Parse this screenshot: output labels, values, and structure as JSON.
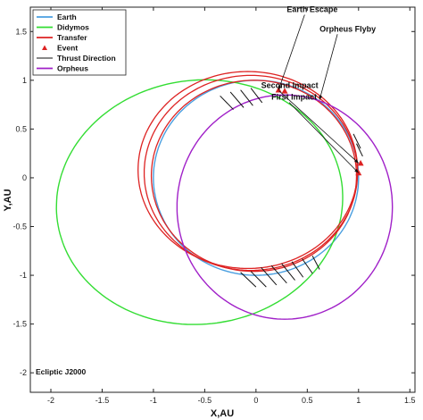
{
  "chart_data": {
    "type": "line",
    "xlabel": "X,AU",
    "ylabel": "Y,AU",
    "xlim": [
      -2.2,
      1.55
    ],
    "ylim": [
      -2.2,
      1.75
    ],
    "xticks": [
      -2,
      -1.5,
      -1,
      -0.5,
      0,
      0.5,
      1,
      1.5
    ],
    "yticks": [
      1.5,
      1,
      0.5,
      0,
      -0.5,
      -1,
      -1.5,
      -2
    ],
    "grid": false,
    "legend_position": "top-left",
    "corner_label": "Ecliptic J2000",
    "series": [
      {
        "name": "Earth",
        "kind": "ellipse",
        "color": "#4a9fe0",
        "center": [
          0,
          0
        ],
        "rx": 1.0,
        "ry": 1.0,
        "rotation_deg": 0
      },
      {
        "name": "Didymos",
        "kind": "ellipse",
        "color": "#33dd33",
        "center": [
          -0.55,
          -0.25
        ],
        "rx": 1.4,
        "ry": 1.25,
        "rotation_deg": 10
      },
      {
        "name": "Transfer",
        "kind": "spiral",
        "color": "#dd2222",
        "loops": [
          {
            "center": [
              -0.02,
              0.02
            ],
            "rx": 1.0,
            "ry": 0.98
          },
          {
            "center": [
              -0.05,
              0.05
            ],
            "rx": 1.04,
            "ry": 1.0
          },
          {
            "center": [
              -0.08,
              0.08
            ],
            "rx": 1.07,
            "ry": 1.01
          }
        ]
      },
      {
        "name": "Event",
        "kind": "markers",
        "color": "#dd2222",
        "points": [
          [
            0.28,
            0.89
          ],
          [
            0.22,
            0.9
          ],
          [
            1.02,
            0.15
          ],
          [
            1.0,
            0.05
          ]
        ]
      },
      {
        "name": "Thrust Direction",
        "kind": "segments",
        "color": "#111111",
        "segments": [
          [
            [
              -0.35,
              0.84
            ],
            [
              -0.22,
              0.7
            ]
          ],
          [
            [
              -0.25,
              0.88
            ],
            [
              -0.12,
              0.72
            ]
          ],
          [
            [
              -0.15,
              0.9
            ],
            [
              -0.03,
              0.74
            ]
          ],
          [
            [
              -0.05,
              0.92
            ],
            [
              0.06,
              0.77
            ]
          ],
          [
            [
              0.05,
              -0.92
            ],
            [
              0.2,
              -1.1
            ]
          ],
          [
            [
              0.15,
              -0.9
            ],
            [
              0.3,
              -1.08
            ]
          ],
          [
            [
              0.25,
              -0.88
            ],
            [
              0.38,
              -1.05
            ]
          ],
          [
            [
              0.35,
              -0.86
            ],
            [
              0.46,
              -1.02
            ]
          ],
          [
            [
              0.45,
              -0.83
            ],
            [
              0.55,
              -0.98
            ]
          ],
          [
            [
              0.55,
              -0.8
            ],
            [
              0.62,
              -0.94
            ]
          ],
          [
            [
              -0.05,
              -0.96
            ],
            [
              0.1,
              -1.12
            ]
          ],
          [
            [
              -0.15,
              -0.97
            ],
            [
              0.0,
              -1.12
            ]
          ],
          [
            [
              0.95,
              0.45
            ],
            [
              1.02,
              0.3
            ]
          ],
          [
            [
              0.98,
              0.35
            ],
            [
              1.04,
              0.22
            ]
          ]
        ]
      },
      {
        "name": "Orpheus",
        "kind": "ellipse",
        "color": "#a020c8",
        "center": [
          0.28,
          -0.3
        ],
        "rx": 1.05,
        "ry": 1.15,
        "rotation_deg": 0
      }
    ],
    "annotations": [
      {
        "text": "Earth Escape",
        "at": [
          0.3,
          1.7
        ],
        "target": [
          0.22,
          0.9
        ]
      },
      {
        "text": "Orpheus Flyby",
        "at": [
          0.62,
          1.5
        ],
        "target": [
          0.62,
          0.8
        ]
      },
      {
        "text": "Second Impact",
        "at": [
          0.05,
          0.92
        ],
        "target": [
          1.0,
          0.15
        ]
      },
      {
        "text": "First Impact",
        "at": [
          0.15,
          0.8
        ],
        "target": [
          1.0,
          0.05
        ]
      }
    ]
  }
}
